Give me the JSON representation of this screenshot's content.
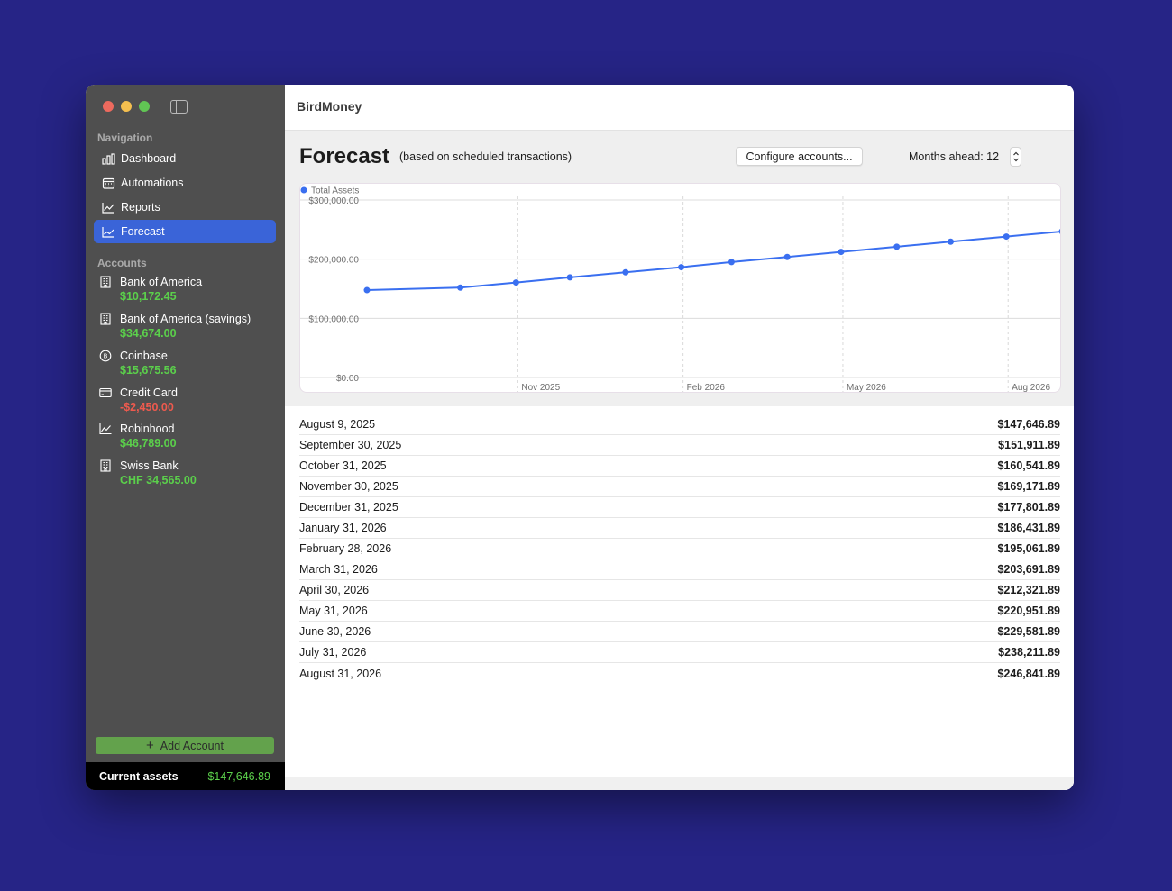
{
  "app": {
    "title": "BirdMoney"
  },
  "sidebar": {
    "navigation_heading": "Navigation",
    "nav_items": [
      {
        "label": "Dashboard",
        "icon": "bar-chart-icon",
        "active": false
      },
      {
        "label": "Automations",
        "icon": "calendar-icon",
        "active": false
      },
      {
        "label": "Reports",
        "icon": "line-chart-icon",
        "active": false
      },
      {
        "label": "Forecast",
        "icon": "forecast-chart-icon",
        "active": true
      }
    ],
    "accounts_heading": "Accounts",
    "accounts": [
      {
        "name": "Bank of America",
        "balance": "$10,172.45",
        "icon": "building-icon",
        "negative": false
      },
      {
        "name": "Bank of America (savings)",
        "balance": "$34,674.00",
        "icon": "building-icon",
        "negative": false
      },
      {
        "name": "Coinbase",
        "balance": "$15,675.56",
        "icon": "bitcoin-icon",
        "negative": false
      },
      {
        "name": "Credit Card",
        "balance": "-$2,450.00",
        "icon": "credit-card-icon",
        "negative": true
      },
      {
        "name": "Robinhood",
        "balance": "$46,789.00",
        "icon": "line-chart-icon",
        "negative": false
      },
      {
        "name": "Swiss Bank",
        "balance": "CHF 34,565.00",
        "icon": "building-icon",
        "negative": false
      }
    ],
    "add_account_label": "Add Account",
    "current_assets_label": "Current assets",
    "current_assets_value": "$147,646.89"
  },
  "forecast": {
    "heading": "Forecast",
    "subheading": "(based on scheduled transactions)",
    "configure_button": "Configure accounts...",
    "months_ahead_label": "Months ahead: 12",
    "rows": [
      {
        "date": "August 9, 2025",
        "value": "$147,646.89"
      },
      {
        "date": "September 30, 2025",
        "value": "$151,911.89"
      },
      {
        "date": "October 31, 2025",
        "value": "$160,541.89"
      },
      {
        "date": "November 30, 2025",
        "value": "$169,171.89"
      },
      {
        "date": "December 31, 2025",
        "value": "$177,801.89"
      },
      {
        "date": "January 31, 2026",
        "value": "$186,431.89"
      },
      {
        "date": "February 28, 2026",
        "value": "$195,061.89"
      },
      {
        "date": "March 31, 2026",
        "value": "$203,691.89"
      },
      {
        "date": "April 30, 2026",
        "value": "$212,321.89"
      },
      {
        "date": "May 31, 2026",
        "value": "$220,951.89"
      },
      {
        "date": "June 30, 2026",
        "value": "$229,581.89"
      },
      {
        "date": "July 31, 2026",
        "value": "$238,211.89"
      },
      {
        "date": "August 31, 2026",
        "value": "$246,841.89"
      }
    ]
  },
  "colors": {
    "accent": "#3a64d8",
    "line": "#3a6ff0",
    "positive": "#5bd04b",
    "negative": "#ee5a4e",
    "sidebar": "#4f4f4f",
    "background": "#262486"
  },
  "chart_data": {
    "type": "line",
    "legend": [
      "Total Assets"
    ],
    "legend_position": "top-left",
    "series": [
      {
        "name": "Total Assets",
        "x": [
          "2025-08-09",
          "2025-09-30",
          "2025-10-31",
          "2025-11-30",
          "2025-12-31",
          "2026-01-31",
          "2026-02-28",
          "2026-03-31",
          "2026-04-30",
          "2026-05-31",
          "2026-06-30",
          "2026-07-31",
          "2026-08-31"
        ],
        "values": [
          147646.89,
          151911.89,
          160541.89,
          169171.89,
          177801.89,
          186431.89,
          195061.89,
          203691.89,
          212321.89,
          220951.89,
          229581.89,
          238211.89,
          246841.89
        ]
      }
    ],
    "y_ticks": [
      0,
      100000,
      200000,
      300000
    ],
    "y_tick_labels": [
      "$0.00",
      "$100,000.00",
      "$200,000.00",
      "$300,000.00"
    ],
    "x_ticks": [
      "2025-11-01",
      "2026-02-01",
      "2026-05-01",
      "2026-08-01"
    ],
    "x_tick_labels": [
      "Nov 2025",
      "Feb 2026",
      "May 2026",
      "Aug 2026"
    ],
    "ylim": [
      0,
      300000
    ],
    "xlim": [
      "2025-08-09",
      "2026-08-31"
    ],
    "grid": true
  }
}
